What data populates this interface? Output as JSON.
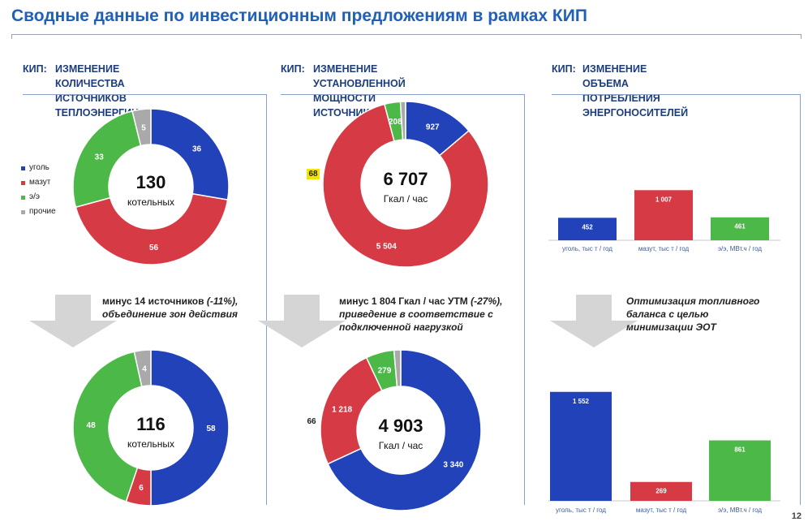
{
  "page": {
    "title": "Сводные данные по инвестиционным предложениям в рамках КИП",
    "page_number": "12"
  },
  "panels": [
    {
      "prefix": "КИП:",
      "title": "ИЗМЕНЕНИЕ КОЛИЧЕСТВА\nИСТОЧНИКОВ ТЕПЛОЭНЕРГИИ"
    },
    {
      "prefix": "КИП:",
      "title": "ИЗМЕНЕНИЕ УСТАНОВЛЕННОЙ\nМОЩНОСТИ ИСТОЧНИКОВ"
    },
    {
      "prefix": "КИП:",
      "title": "ИЗМЕНЕНИЕ ОБЪЕМА\nПОТРЕБЛЕНИЯ ЭНЕРГОНОСИТЕЛЕЙ"
    }
  ],
  "legend": [
    {
      "label": "уголь",
      "color": "#2142b8"
    },
    {
      "label": "мазут",
      "color": "#d63a44"
    },
    {
      "label": "э/э",
      "color": "#4cb848"
    },
    {
      "label": "прочие",
      "color": "#a9a9a9"
    }
  ],
  "notes": {
    "boilers_bold": "минус 14 источников ",
    "boilers_pct": "(-11%),",
    "boilers_line2": "объединение зон действия",
    "capacity_bold": "минус 1 804 Гкал / час УТМ ",
    "capacity_pct": "(-27%),",
    "capacity_line2": "приведение в соответствие с",
    "capacity_line3": "подключенной нагрузкой",
    "energy": "Оптимизация топливного\nбаланса с целью\nминимизации ЭОТ"
  },
  "chart_data": [
    {
      "type": "pie",
      "name": "boilers-before",
      "center_value": "130",
      "center_label": "котельных",
      "slices": [
        {
          "label": "уголь",
          "value": 36
        },
        {
          "label": "мазут",
          "value": 56
        },
        {
          "label": "э/э",
          "value": 33
        },
        {
          "label": "прочие",
          "value": 5
        }
      ]
    },
    {
      "type": "pie",
      "name": "boilers-after",
      "center_value": "116",
      "center_label": "котельных",
      "slices": [
        {
          "label": "уголь",
          "value": 58
        },
        {
          "label": "мазут",
          "value": 6
        },
        {
          "label": "э/э",
          "value": 48
        },
        {
          "label": "прочие",
          "value": 4
        }
      ]
    },
    {
      "type": "pie",
      "name": "capacity-before",
      "center_value": "6 707",
      "center_label": "Гкал / час",
      "slices": [
        {
          "label": "уголь",
          "value": 927,
          "display": "927"
        },
        {
          "label": "мазут",
          "value": 5504,
          "display": "5 504"
        },
        {
          "label": "э/э",
          "value": 208,
          "display": "208"
        },
        {
          "label": "прочие",
          "value": 68,
          "display": "68"
        }
      ]
    },
    {
      "type": "pie",
      "name": "capacity-after",
      "center_value": "4 903",
      "center_label": "Гкал / час",
      "slices": [
        {
          "label": "уголь",
          "value": 3340,
          "display": "3 340"
        },
        {
          "label": "мазут",
          "value": 1218,
          "display": "1 218"
        },
        {
          "label": "э/э",
          "value": 279,
          "display": "279"
        },
        {
          "label": "прочие",
          "value": 66,
          "display": "66"
        }
      ]
    },
    {
      "type": "bar",
      "name": "consumption-before",
      "categories": [
        "уголь, тыс т / год",
        "мазут, тыс т / год",
        "э/э, МВт.ч / год"
      ],
      "values": [
        452,
        1007,
        461
      ],
      "labels": [
        "452",
        "1 007",
        "461"
      ]
    },
    {
      "type": "bar",
      "name": "consumption-after",
      "categories": [
        "уголь, тыс т / год",
        "мазут, тыс т / год",
        "э/э, МВт.ч / год"
      ],
      "values": [
        1552,
        269,
        861
      ],
      "labels": [
        "1 552",
        "269",
        "861"
      ]
    }
  ]
}
